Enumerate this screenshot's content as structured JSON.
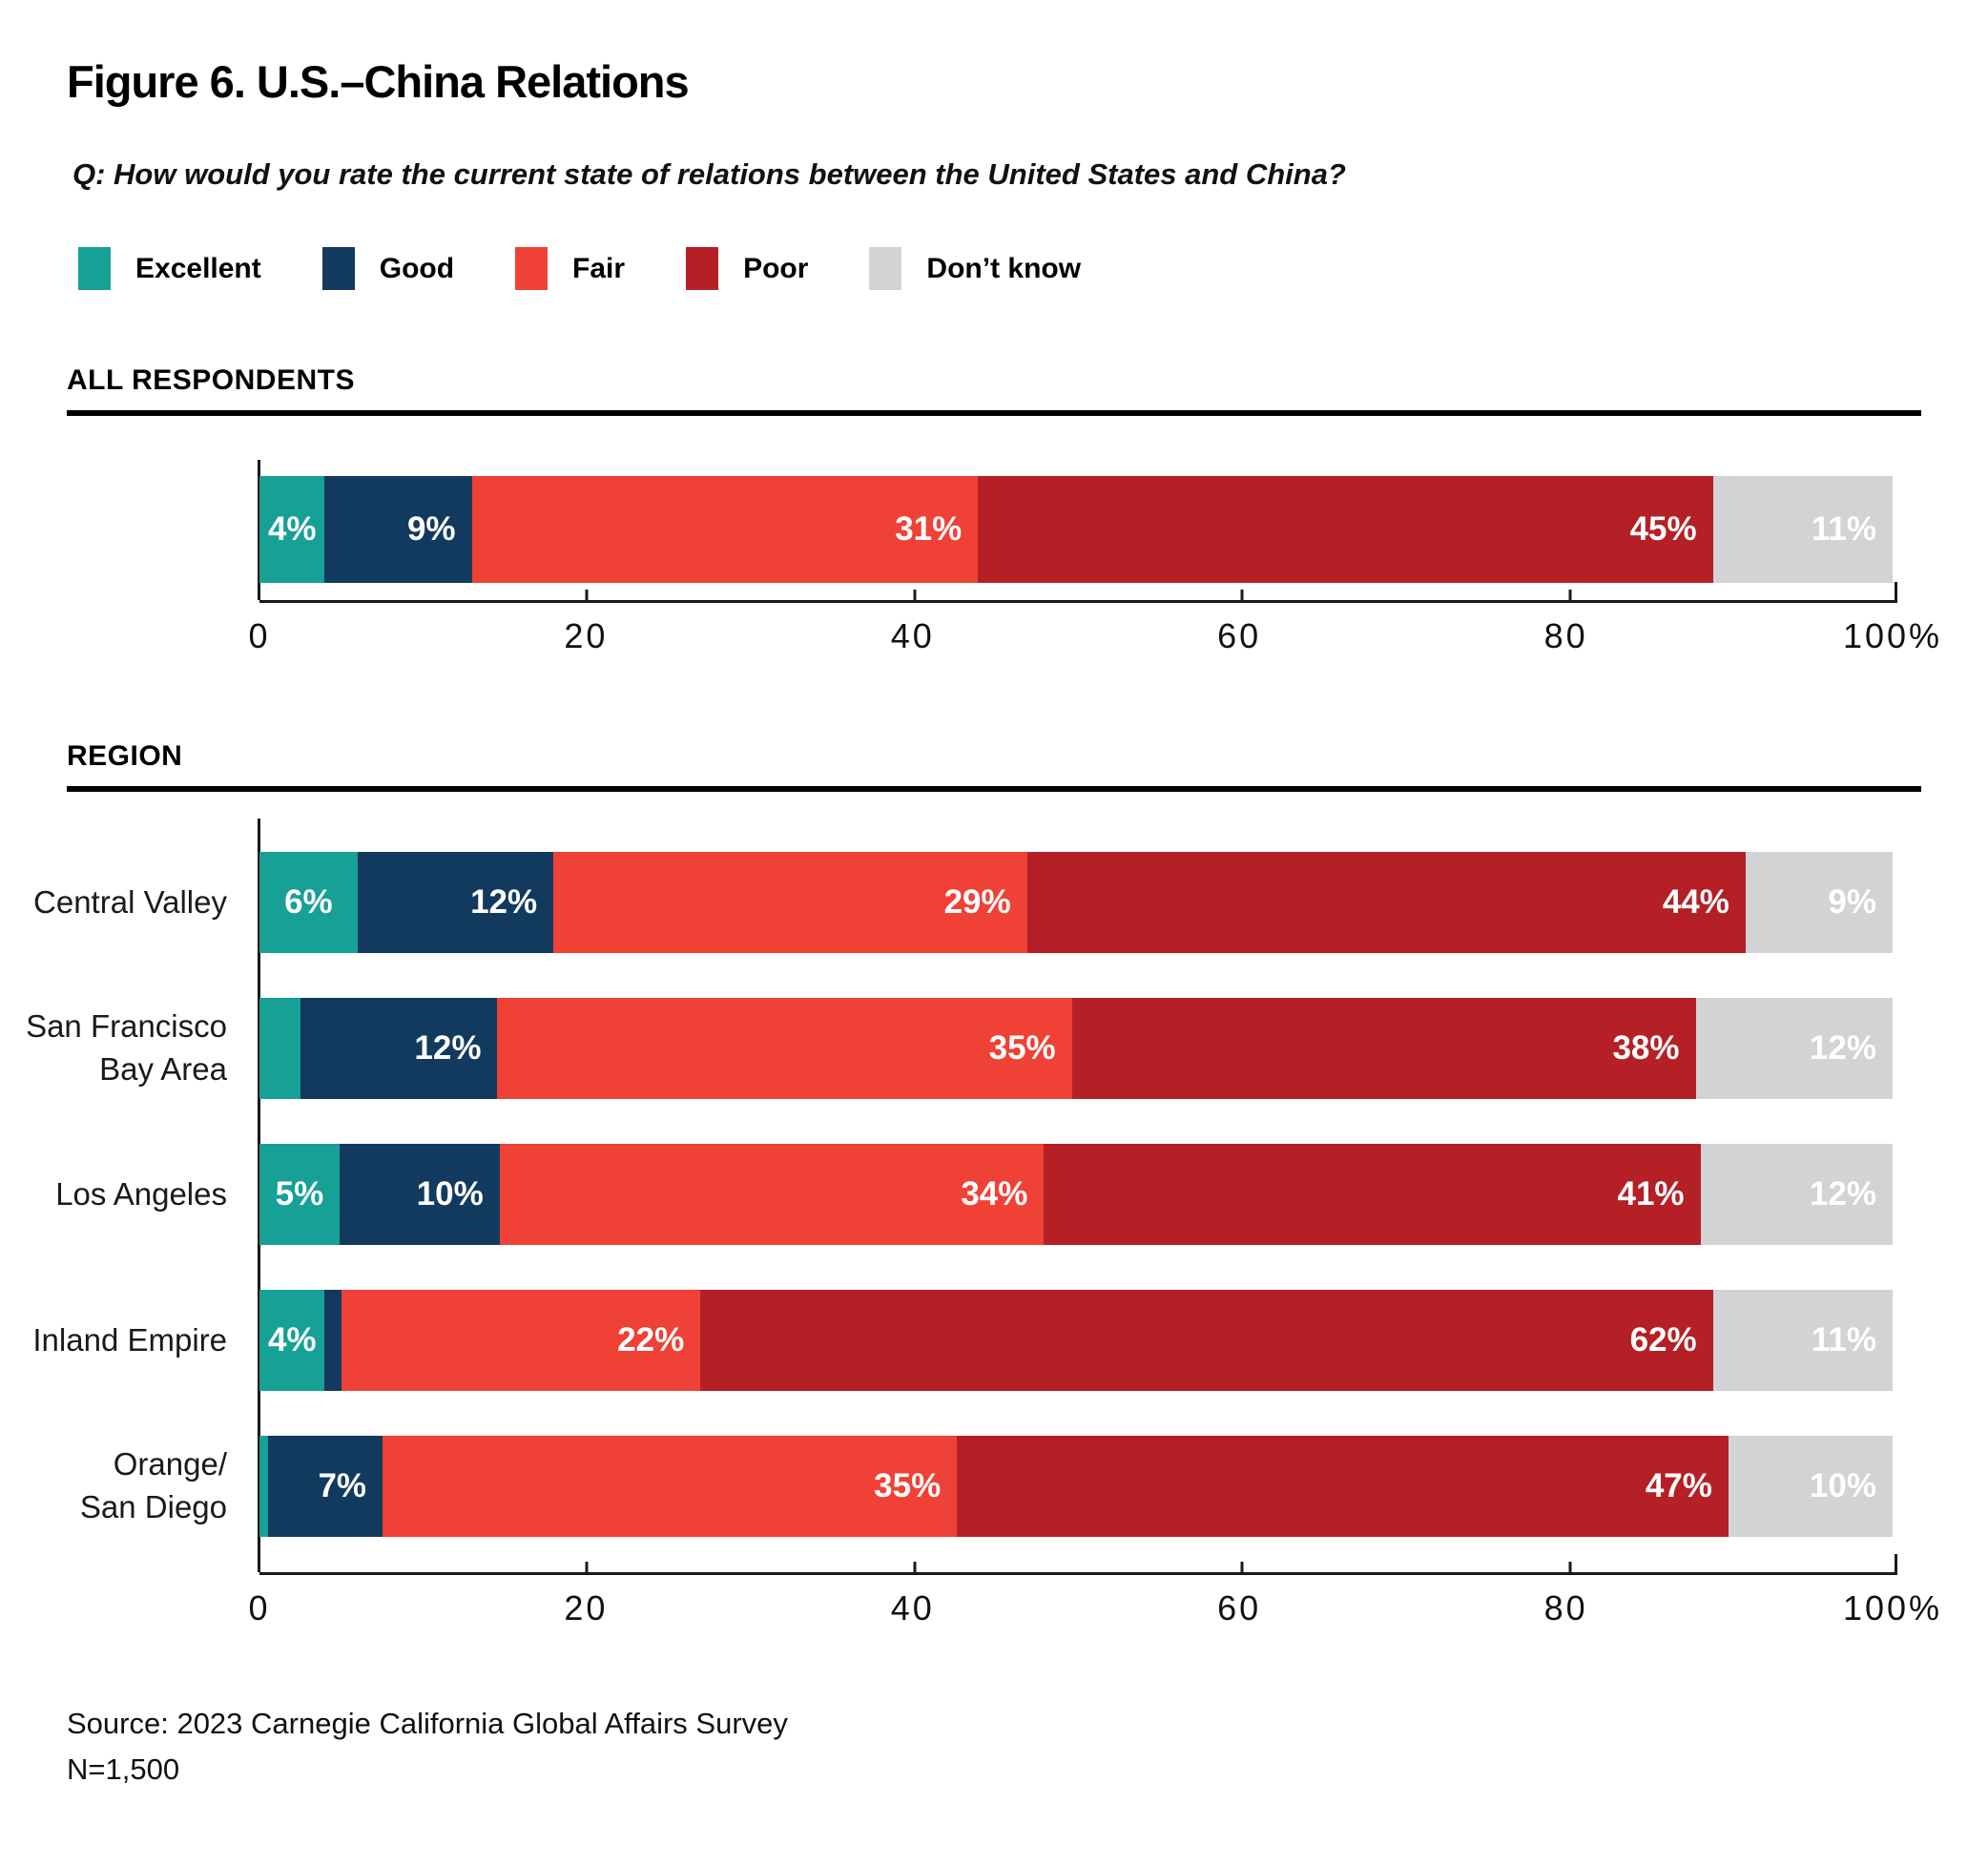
{
  "title": "Figure 6. U.S.–China Relations",
  "question": "Q: How would you rate the current state of relations between the United States and China?",
  "legend": [
    {
      "label": "Excellent",
      "color": "#16A096"
    },
    {
      "label": "Good",
      "color": "#123A5E"
    },
    {
      "label": "Fair",
      "color": "#EF4136"
    },
    {
      "label": "Poor",
      "color": "#B42025"
    },
    {
      "label": "Don’t know",
      "color": "#D2D3D4"
    }
  ],
  "source_line1": "Source: 2023 Carnegie California Global Affairs Survey",
  "source_line2": "N=1,500",
  "chart_data": {
    "type": "bar",
    "orientation": "horizontal-stacked",
    "series_names": [
      "Excellent",
      "Good",
      "Fair",
      "Poor",
      "Don’t know"
    ],
    "series_colors": [
      "#16A096",
      "#123A5E",
      "#EF4136",
      "#B42025",
      "#D2D3D4"
    ],
    "x_axis": {
      "range": [
        0,
        100
      ],
      "ticks": [
        "0",
        "20",
        "40",
        "60",
        "80",
        "100%"
      ],
      "tick_step": 20
    },
    "sections": [
      {
        "title": "ALL RESPONDENTS",
        "rows": [
          {
            "label_lines": [],
            "segments": [
              {
                "value": 4,
                "label": "4%"
              },
              {
                "value": 9,
                "label": "9%"
              },
              {
                "value": 31,
                "label": "31%"
              },
              {
                "value": 45,
                "label": "45%"
              },
              {
                "value": 11,
                "label": "11%"
              }
            ]
          }
        ]
      },
      {
        "title": "REGION",
        "rows": [
          {
            "label_lines": [
              "Central Valley"
            ],
            "segments": [
              {
                "value": 6,
                "label": "6%"
              },
              {
                "value": 12,
                "label": "12%"
              },
              {
                "value": 29,
                "label": "29%"
              },
              {
                "value": 44,
                "label": "44%"
              },
              {
                "value": 9,
                "label": "9%"
              }
            ]
          },
          {
            "label_lines": [
              "San Francisco",
              "Bay Area"
            ],
            "segments": [
              {
                "value": 2.5,
                "label": ""
              },
              {
                "value": 12,
                "label": "12%"
              },
              {
                "value": 35,
                "label": "35%"
              },
              {
                "value": 38,
                "label": "38%"
              },
              {
                "value": 12,
                "label": "12%"
              }
            ]
          },
          {
            "label_lines": [
              "Los Angeles"
            ],
            "segments": [
              {
                "value": 5,
                "label": "5%"
              },
              {
                "value": 10,
                "label": "10%"
              },
              {
                "value": 34,
                "label": "34%"
              },
              {
                "value": 41,
                "label": "41%"
              },
              {
                "value": 12,
                "label": "12%"
              }
            ]
          },
          {
            "label_lines": [
              "Inland Empire"
            ],
            "segments": [
              {
                "value": 4,
                "label": "4%"
              },
              {
                "value": 1,
                "label": ""
              },
              {
                "value": 22,
                "label": "22%"
              },
              {
                "value": 62,
                "label": "62%"
              },
              {
                "value": 11,
                "label": "11%"
              }
            ]
          },
          {
            "label_lines": [
              "Orange/",
              "San Diego"
            ],
            "segments": [
              {
                "value": 0.5,
                "label": ""
              },
              {
                "value": 7,
                "label": "7%"
              },
              {
                "value": 35,
                "label": "35%"
              },
              {
                "value": 47,
                "label": "47%"
              },
              {
                "value": 10,
                "label": "10%"
              }
            ]
          }
        ]
      }
    ]
  }
}
